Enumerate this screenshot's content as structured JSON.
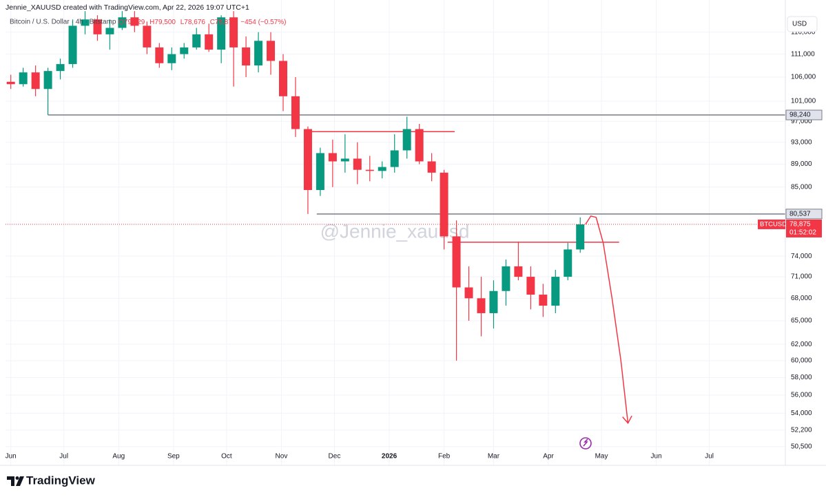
{
  "header": {
    "attribution": "Jennie_XAUUSD created with TradingView.com, Apr 22, 2026 19:07 UTC+1",
    "symbol": "Bitcoin / U.S. Dollar · 4h · Bitstamp",
    "quote": [
      "O79,329",
      "H79,500",
      "L78,676",
      "C78,875",
      "−454 (−0.57%)"
    ],
    "currency": "USD",
    "watermark": "@Jennie_xauusd",
    "brand": "TradingView"
  },
  "chart_data": {
    "type": "candlestick",
    "log_scale": true,
    "grid": true,
    "up_color": "#089981",
    "down_color": "#f23645",
    "x": [
      0,
      7,
      14,
      21,
      28,
      35,
      42,
      49,
      56,
      63,
      70,
      77,
      84,
      91,
      98,
      105,
      112,
      119,
      126,
      133,
      140,
      147,
      154,
      161,
      168,
      175,
      182,
      189,
      196,
      203,
      210,
      217,
      224,
      231,
      238,
      245,
      252,
      259,
      266,
      273,
      280,
      287,
      294,
      301,
      308,
      315,
      322
    ],
    "open": [
      105000,
      104500,
      107000,
      103500,
      107300,
      108800,
      117500,
      119000,
      115500,
      117000,
      119500,
      117500,
      112500,
      109000,
      111000,
      112500,
      115500,
      112000,
      119500,
      112500,
      108500,
      114000,
      109500,
      102000,
      95500,
      84500,
      91000,
      89500,
      90000,
      88000,
      87800,
      88500,
      91500,
      95500,
      89500,
      87500,
      77000,
      69500,
      68000,
      66000,
      69000,
      72500,
      71000,
      68500,
      67000,
      71000,
      75000
    ],
    "high": [
      106500,
      108000,
      108500,
      108000,
      110000,
      119000,
      121000,
      120000,
      119000,
      121000,
      121000,
      118500,
      113500,
      112500,
      113500,
      117000,
      118000,
      120000,
      121000,
      115000,
      116000,
      116000,
      111000,
      106000,
      96000,
      92000,
      93500,
      94500,
      93000,
      90500,
      89500,
      94500,
      97900,
      96500,
      91000,
      88000,
      79500,
      72500,
      71000,
      70500,
      73500,
      76200,
      72500,
      70000,
      72000,
      76000,
      80000
    ],
    "low": [
      103500,
      104000,
      102000,
      98240,
      105500,
      108000,
      115500,
      114000,
      112000,
      116500,
      116000,
      111000,
      108000,
      107500,
      110000,
      112000,
      111500,
      109000,
      104000,
      106000,
      107000,
      106500,
      99000,
      94000,
      80537,
      83500,
      85000,
      87500,
      85500,
      86000,
      86500,
      87500,
      90000,
      89000,
      86000,
      75000,
      60000,
      65000,
      63000,
      64000,
      67000,
      70500,
      66500,
      65500,
      66000,
      70500,
      74500
    ],
    "close": [
      104500,
      107000,
      103500,
      107300,
      108800,
      117500,
      119000,
      115500,
      117000,
      119500,
      117500,
      112500,
      109000,
      111000,
      112500,
      115500,
      112000,
      119500,
      112500,
      108500,
      114000,
      109500,
      102000,
      95500,
      84500,
      91000,
      89500,
      90000,
      88000,
      87800,
      88500,
      91500,
      95500,
      89500,
      87500,
      77000,
      69500,
      68000,
      66000,
      69000,
      72500,
      71000,
      68500,
      67000,
      71000,
      75000,
      78875
    ],
    "xlim": [
      -3,
      438
    ],
    "xticks": [
      {
        "value": 0,
        "label": "Jun"
      },
      {
        "value": 30,
        "label": "Jul"
      },
      {
        "value": 61,
        "label": "Aug"
      },
      {
        "value": 92,
        "label": "Sep"
      },
      {
        "value": 122,
        "label": "Oct"
      },
      {
        "value": 153,
        "label": "Nov"
      },
      {
        "value": 183,
        "label": "Dec"
      },
      {
        "value": 214,
        "label": "2026"
      },
      {
        "value": 245,
        "label": "Feb"
      },
      {
        "value": 273,
        "label": "Mar"
      },
      {
        "value": 304,
        "label": "Apr"
      },
      {
        "value": 334,
        "label": "May"
      },
      {
        "value": 365,
        "label": "Jun"
      },
      {
        "value": 395,
        "label": "Jul"
      }
    ],
    "ylim": [
      48900,
      121700
    ],
    "yticks": [
      {
        "value": 50500,
        "label": "50,500"
      },
      {
        "value": 52200,
        "label": "52,200"
      },
      {
        "value": 54000,
        "label": "54,000"
      },
      {
        "value": 56000,
        "label": "56,000"
      },
      {
        "value": 58000,
        "label": "58,000"
      },
      {
        "value": 60000,
        "label": "60,000"
      },
      {
        "value": 62000,
        "label": "62,000"
      },
      {
        "value": 65000,
        "label": "65,000"
      },
      {
        "value": 68000,
        "label": "68,000"
      },
      {
        "value": 71000,
        "label": "71,000"
      },
      {
        "value": 74000,
        "label": "74,000"
      },
      {
        "value": 85000,
        "label": "85,000"
      },
      {
        "value": 89000,
        "label": "89,000"
      },
      {
        "value": 93000,
        "label": "93,000"
      },
      {
        "value": 97000,
        "label": "97,000"
      },
      {
        "value": 101000,
        "label": "101,000"
      },
      {
        "value": 106000,
        "label": "106,000"
      },
      {
        "value": 111000,
        "label": "111,000"
      },
      {
        "value": 116000,
        "label": "116,000"
      }
    ],
    "levels": [
      {
        "value": 98240,
        "label": "98,240",
        "x_start": 21,
        "color": "#787b86"
      },
      {
        "value": 80537,
        "label": "80,537",
        "x_start": 173,
        "color": "#787b86"
      },
      {
        "value": 95000,
        "x_start": 168,
        "x_end": 251,
        "color": "#f23645"
      },
      {
        "value": 76100,
        "x_start": 247,
        "x_end": 344,
        "color": "#f23645"
      }
    ],
    "projection": {
      "x": [
        325,
        328,
        331,
        335,
        340,
        345,
        349
      ],
      "values": [
        78875,
        80200,
        80000,
        76000,
        68000,
        60000,
        52930
      ],
      "color": "#f23645"
    },
    "symbol_tag": "BTCUSD",
    "last_price": {
      "value": 78875,
      "label": "78,875"
    },
    "countdown": "01:52:02"
  }
}
